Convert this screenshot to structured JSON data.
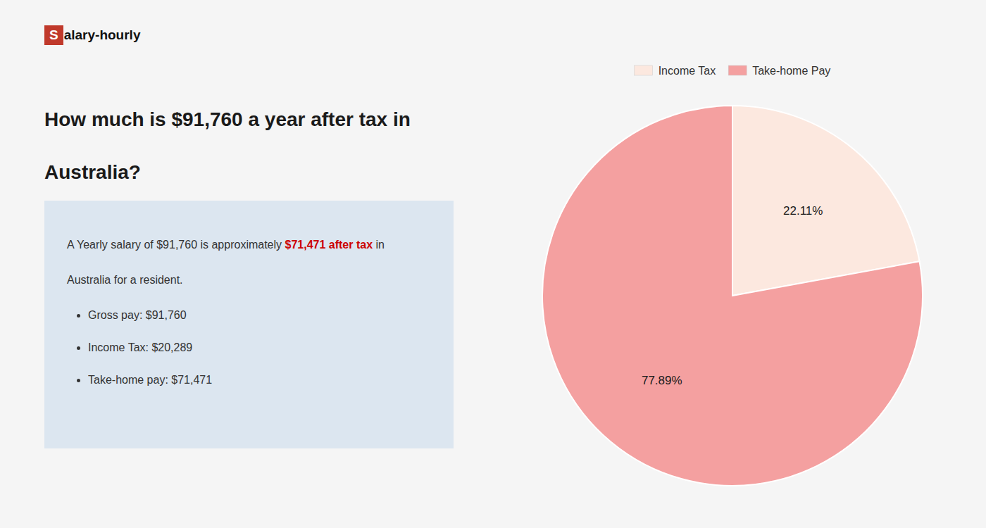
{
  "chart_data": {
    "type": "pie",
    "title": [
      "How much is $91,760 a year after tax in",
      "Australia?"
    ],
    "logo": {
      "mark": "S",
      "text": "alary-hourly",
      "color": "#c0392b"
    },
    "info_box": {
      "lines": [
        [
          {
            "text": "A Yearly salary of $91,760 is approximately "
          },
          {
            "text": "$71,471 after tax",
            "color": "#cc0000"
          },
          {
            "text": " in"
          }
        ],
        [
          {
            "text": "Australia for a resident."
          }
        ]
      ],
      "bullets": [
        "Gross pay: $91,760",
        "Income Tax: $20,289",
        "Take-home pay: $71,471"
      ]
    },
    "categories": [
      "Income Tax",
      "Take-home Pay"
    ],
    "values": [
      22.11,
      77.89
    ],
    "value_labels": [
      "22.11%",
      "77.89%"
    ],
    "colors": [
      "#fce8df",
      "#f4a0a0"
    ],
    "data_labels": true,
    "legend": "top"
  }
}
